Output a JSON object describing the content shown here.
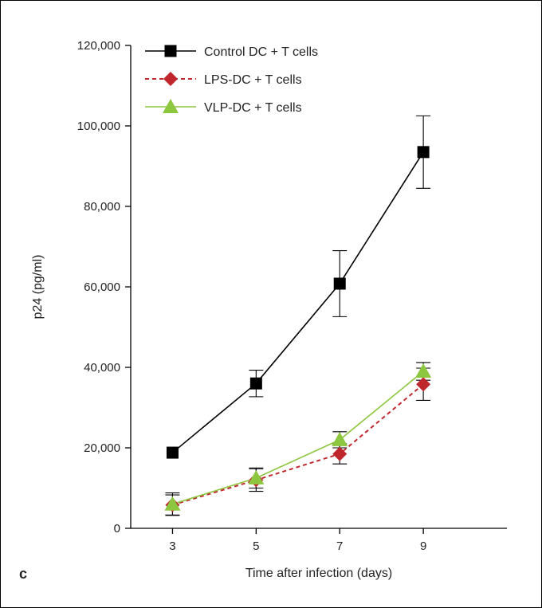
{
  "chart_data": {
    "type": "line",
    "panel_label": "c",
    "title": "",
    "xlabel": "Time after infection (days)",
    "ylabel": "p24 (pg/ml)",
    "x": [
      3,
      5,
      7,
      9
    ],
    "x_tick_labels": [
      "3",
      "5",
      "7",
      "9"
    ],
    "xlim": [
      2,
      11
    ],
    "ylim": [
      0,
      120000
    ],
    "y_ticks": [
      0,
      20000,
      40000,
      60000,
      80000,
      100000,
      120000
    ],
    "y_tick_labels": [
      "0",
      "20,000",
      "40,000",
      "60,000",
      "80,000",
      "100,000",
      "120,000"
    ],
    "grid": false,
    "legend_position": "top-left",
    "series": [
      {
        "name": "Control DC + T cells",
        "color": "#000000",
        "marker": "square",
        "dashed": false,
        "values": [
          18800,
          36000,
          60800,
          93500
        ],
        "errors": [
          0,
          3300,
          8200,
          9000
        ]
      },
      {
        "name": "LPS-DC + T cells",
        "color": "#c0272d",
        "marker": "diamond",
        "dashed": true,
        "values": [
          5800,
          12000,
          18500,
          35800
        ],
        "errors": [
          2500,
          2800,
          2500,
          4000
        ]
      },
      {
        "name": "VLP-DC + T cells",
        "color": "#8dc63f",
        "marker": "triangle",
        "dashed": false,
        "values": [
          6000,
          12500,
          22000,
          39000
        ],
        "errors": [
          2800,
          2500,
          2000,
          2200
        ]
      }
    ]
  }
}
